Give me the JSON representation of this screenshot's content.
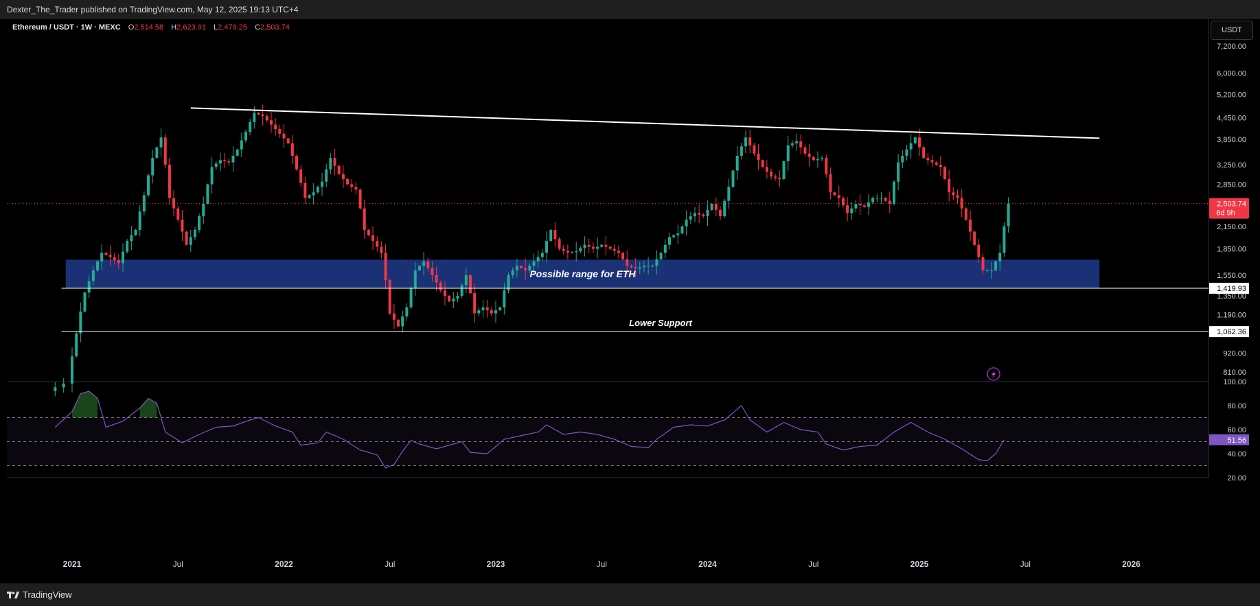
{
  "header": {
    "publisher": "Dexter_The_Trader published on TradingView.com, May 12, 2025 19:13 UTC+4"
  },
  "legend": {
    "symbol": "Ethereum / USDT · 1W · MEXC",
    "open_label": "O",
    "open": "2,514.58",
    "high_label": "H",
    "high": "2,623.91",
    "low_label": "L",
    "low": "2,479.25",
    "close_label": "C",
    "close": "2,503.74"
  },
  "currency_button": "USDT",
  "footer": {
    "brand": "TradingView"
  },
  "colors": {
    "up": "#22ab94",
    "down": "#f23645",
    "zone": "#1e3a8a",
    "rsi": "#7e57c2"
  },
  "chart_data": {
    "type": "candlestick",
    "title": "Ethereum / USDT · 1W · MEXC",
    "scale": "log",
    "ylim": [
      760,
      8300
    ],
    "y_ticks": [
      "7,200.00",
      "6,000.00",
      "5,200.00",
      "4,450.00",
      "3,850.00",
      "3,250.00",
      "2,850.00",
      "2,150.00",
      "1,850.00",
      "1,550.00",
      "1,350.00",
      "1,190.00",
      "920.00",
      "810.00"
    ],
    "x_ticks": [
      "2021",
      "Jul",
      "2022",
      "Jul",
      "2023",
      "Jul",
      "2024",
      "Jul",
      "2025",
      "Jul",
      "2026"
    ],
    "last_price": {
      "value": "2,503.74",
      "countdown": "6d 9h"
    },
    "levels": [
      {
        "label": "1,419.93",
        "value": 1419.93
      },
      {
        "label": "1,062.36",
        "value": 1062.36
      }
    ],
    "zone": {
      "label": "Possible range for ETH",
      "low": 1419.93,
      "high": 1720,
      "from": "2021-01",
      "to": "2025-10"
    },
    "support_label": "Lower Support",
    "trendline": {
      "from": {
        "t": 2021.56,
        "price": 4750
      },
      "to": {
        "t": 2025.85,
        "price": 3880
      }
    },
    "weekly_closes": [
      [
        2020.92,
        750
      ],
      [
        2021.0,
        1050
      ],
      [
        2021.04,
        1380
      ],
      [
        2021.08,
        1600
      ],
      [
        2021.12,
        1800
      ],
      [
        2021.16,
        1750
      ],
      [
        2021.2,
        1680
      ],
      [
        2021.24,
        1950
      ],
      [
        2021.28,
        2100
      ],
      [
        2021.32,
        2650
      ],
      [
        2021.36,
        3400
      ],
      [
        2021.4,
        3900
      ],
      [
        2021.44,
        2600
      ],
      [
        2021.48,
        2250
      ],
      [
        2021.52,
        1900
      ],
      [
        2021.56,
        2100
      ],
      [
        2021.6,
        2500
      ],
      [
        2021.64,
        3200
      ],
      [
        2021.68,
        3350
      ],
      [
        2021.72,
        3300
      ],
      [
        2021.76,
        3600
      ],
      [
        2021.8,
        4050
      ],
      [
        2021.84,
        4600
      ],
      [
        2021.88,
        4500
      ],
      [
        2021.92,
        4250
      ],
      [
        2021.96,
        4000
      ],
      [
        2022.0,
        3750
      ],
      [
        2022.04,
        3150
      ],
      [
        2022.08,
        2600
      ],
      [
        2022.12,
        2700
      ],
      [
        2022.16,
        2900
      ],
      [
        2022.2,
        3400
      ],
      [
        2022.24,
        3050
      ],
      [
        2022.28,
        2850
      ],
      [
        2022.32,
        2750
      ],
      [
        2022.36,
        2100
      ],
      [
        2022.4,
        1950
      ],
      [
        2022.44,
        1800
      ],
      [
        2022.48,
        1200
      ],
      [
        2022.52,
        1100
      ],
      [
        2022.56,
        1250
      ],
      [
        2022.6,
        1600
      ],
      [
        2022.64,
        1700
      ],
      [
        2022.68,
        1550
      ],
      [
        2022.72,
        1400
      ],
      [
        2022.76,
        1300
      ],
      [
        2022.8,
        1350
      ],
      [
        2022.84,
        1550
      ],
      [
        2022.88,
        1200
      ],
      [
        2022.92,
        1250
      ],
      [
        2022.96,
        1200
      ],
      [
        2023.0,
        1250
      ],
      [
        2023.04,
        1550
      ],
      [
        2023.08,
        1650
      ],
      [
        2023.12,
        1600
      ],
      [
        2023.16,
        1700
      ],
      [
        2023.2,
        1800
      ],
      [
        2023.24,
        2100
      ],
      [
        2023.28,
        1850
      ],
      [
        2023.32,
        1800
      ],
      [
        2023.36,
        1820
      ],
      [
        2023.4,
        1900
      ],
      [
        2023.44,
        1850
      ],
      [
        2023.48,
        1900
      ],
      [
        2023.52,
        1850
      ],
      [
        2023.56,
        1800
      ],
      [
        2023.6,
        1650
      ],
      [
        2023.64,
        1620
      ],
      [
        2023.68,
        1650
      ],
      [
        2023.72,
        1650
      ],
      [
        2023.76,
        1800
      ],
      [
        2023.8,
        2000
      ],
      [
        2023.84,
        2050
      ],
      [
        2023.88,
        2250
      ],
      [
        2023.92,
        2350
      ],
      [
        2023.96,
        2300
      ],
      [
        2024.0,
        2500
      ],
      [
        2024.04,
        2300
      ],
      [
        2024.08,
        2800
      ],
      [
        2024.12,
        3450
      ],
      [
        2024.16,
        3900
      ],
      [
        2024.2,
        3500
      ],
      [
        2024.24,
        3200
      ],
      [
        2024.28,
        3000
      ],
      [
        2024.32,
        2950
      ],
      [
        2024.36,
        3700
      ],
      [
        2024.4,
        3800
      ],
      [
        2024.44,
        3500
      ],
      [
        2024.48,
        3350
      ],
      [
        2024.52,
        3400
      ],
      [
        2024.56,
        2700
      ],
      [
        2024.6,
        2600
      ],
      [
        2024.64,
        2350
      ],
      [
        2024.68,
        2500
      ],
      [
        2024.72,
        2450
      ],
      [
        2024.76,
        2600
      ],
      [
        2024.8,
        2600
      ],
      [
        2024.84,
        2500
      ],
      [
        2024.88,
        3300
      ],
      [
        2024.92,
        3600
      ],
      [
        2024.96,
        3900
      ],
      [
        2025.0,
        3400
      ],
      [
        2025.04,
        3300
      ],
      [
        2025.08,
        3200
      ],
      [
        2025.12,
        2700
      ],
      [
        2025.16,
        2600
      ],
      [
        2025.2,
        2250
      ],
      [
        2025.24,
        1900
      ],
      [
        2025.28,
        1600
      ],
      [
        2025.32,
        1600
      ],
      [
        2025.36,
        1800
      ],
      [
        2025.4,
        2503.74
      ]
    ],
    "rsi": {
      "label": "51.56",
      "ylim": [
        20,
        100
      ],
      "y_ticks": [
        "100.00",
        "80.00",
        "60.00",
        "40.00",
        "20.00"
      ],
      "bands": [
        30,
        50,
        70
      ],
      "points": [
        [
          2020.92,
          62
        ],
        [
          2021.0,
          75
        ],
        [
          2021.04,
          90
        ],
        [
          2021.08,
          92
        ],
        [
          2021.12,
          86
        ],
        [
          2021.16,
          62
        ],
        [
          2021.24,
          67
        ],
        [
          2021.32,
          78
        ],
        [
          2021.36,
          86
        ],
        [
          2021.4,
          82
        ],
        [
          2021.44,
          58
        ],
        [
          2021.52,
          49
        ],
        [
          2021.6,
          56
        ],
        [
          2021.68,
          62
        ],
        [
          2021.76,
          63
        ],
        [
          2021.84,
          68
        ],
        [
          2021.88,
          70
        ],
        [
          2021.96,
          63
        ],
        [
          2022.04,
          58
        ],
        [
          2022.08,
          47
        ],
        [
          2022.16,
          49
        ],
        [
          2022.2,
          58
        ],
        [
          2022.28,
          52
        ],
        [
          2022.36,
          43
        ],
        [
          2022.44,
          39
        ],
        [
          2022.48,
          28
        ],
        [
          2022.52,
          31
        ],
        [
          2022.56,
          42
        ],
        [
          2022.6,
          51
        ],
        [
          2022.64,
          48
        ],
        [
          2022.72,
          44
        ],
        [
          2022.8,
          48
        ],
        [
          2022.84,
          50
        ],
        [
          2022.88,
          41
        ],
        [
          2022.96,
          40
        ],
        [
          2023.04,
          52
        ],
        [
          2023.12,
          55
        ],
        [
          2023.2,
          58
        ],
        [
          2023.24,
          64
        ],
        [
          2023.32,
          56
        ],
        [
          2023.4,
          58
        ],
        [
          2023.48,
          56
        ],
        [
          2023.56,
          52
        ],
        [
          2023.64,
          46
        ],
        [
          2023.72,
          45
        ],
        [
          2023.76,
          52
        ],
        [
          2023.84,
          62
        ],
        [
          2023.92,
          64
        ],
        [
          2024.0,
          63
        ],
        [
          2024.08,
          68
        ],
        [
          2024.16,
          80
        ],
        [
          2024.2,
          68
        ],
        [
          2024.28,
          58
        ],
        [
          2024.36,
          66
        ],
        [
          2024.44,
          60
        ],
        [
          2024.52,
          58
        ],
        [
          2024.56,
          48
        ],
        [
          2024.64,
          43
        ],
        [
          2024.72,
          46
        ],
        [
          2024.8,
          47
        ],
        [
          2024.88,
          58
        ],
        [
          2024.96,
          66
        ],
        [
          2025.04,
          58
        ],
        [
          2025.12,
          52
        ],
        [
          2025.2,
          44
        ],
        [
          2025.28,
          35
        ],
        [
          2025.32,
          34
        ],
        [
          2025.36,
          40
        ],
        [
          2025.4,
          51.56
        ]
      ]
    },
    "x_ticks_rsi_range": "2021 – 2026"
  }
}
